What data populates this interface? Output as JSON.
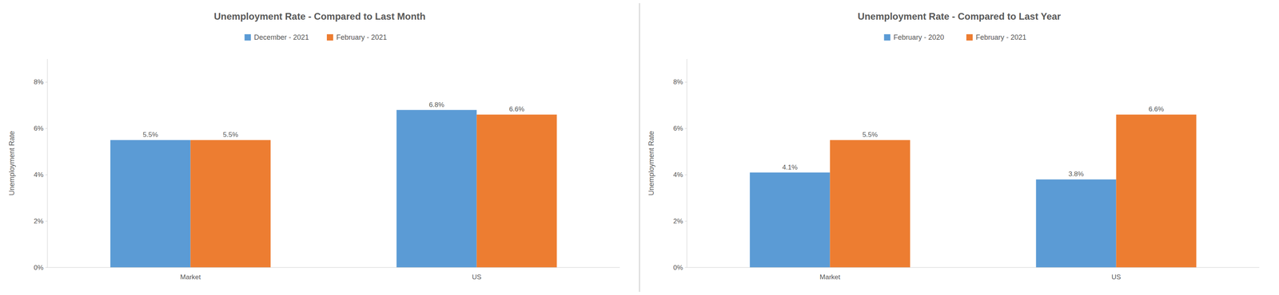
{
  "chart_data": [
    {
      "type": "bar",
      "title": "Unemployment Rate - Compared to Last Month",
      "categories": [
        "Market",
        "US"
      ],
      "series": [
        {
          "name": "December - 2021",
          "color": "#5B9BD5",
          "values": [
            5.5,
            6.8
          ],
          "value_labels": [
            "5.5%",
            "6.8%"
          ]
        },
        {
          "name": "February - 2021",
          "color": "#ED7D31",
          "values": [
            5.5,
            6.6
          ],
          "value_labels": [
            "5.5%",
            "6.6%"
          ]
        }
      ],
      "ylabel": "Unemployment Rate",
      "ylim": [
        0,
        9
      ],
      "yticks": [
        {
          "value": 0,
          "label": "0%"
        },
        {
          "value": 2,
          "label": "2%"
        },
        {
          "value": 4,
          "label": "4%"
        },
        {
          "value": 6,
          "label": "6%"
        },
        {
          "value": 8,
          "label": "8%"
        }
      ],
      "grid": false,
      "legend": "top",
      "data_labels": true
    },
    {
      "type": "bar",
      "title": "Unemployment Rate - Compared to Last Year",
      "categories": [
        "Market",
        "US"
      ],
      "series": [
        {
          "name": "February - 2020",
          "color": "#5B9BD5",
          "values": [
            4.1,
            3.8
          ],
          "value_labels": [
            "4.1%",
            "3.8%"
          ]
        },
        {
          "name": "February - 2021",
          "color": "#ED7D31",
          "values": [
            5.5,
            6.6
          ],
          "value_labels": [
            "5.5%",
            "6.6%"
          ]
        }
      ],
      "ylabel": "Unemployment Rate",
      "ylim": [
        0,
        9
      ],
      "yticks": [
        {
          "value": 0,
          "label": "0%"
        },
        {
          "value": 2,
          "label": "2%"
        },
        {
          "value": 4,
          "label": "4%"
        },
        {
          "value": 6,
          "label": "6%"
        },
        {
          "value": 8,
          "label": "8%"
        }
      ],
      "grid": false,
      "legend": "top",
      "data_labels": true
    }
  ]
}
